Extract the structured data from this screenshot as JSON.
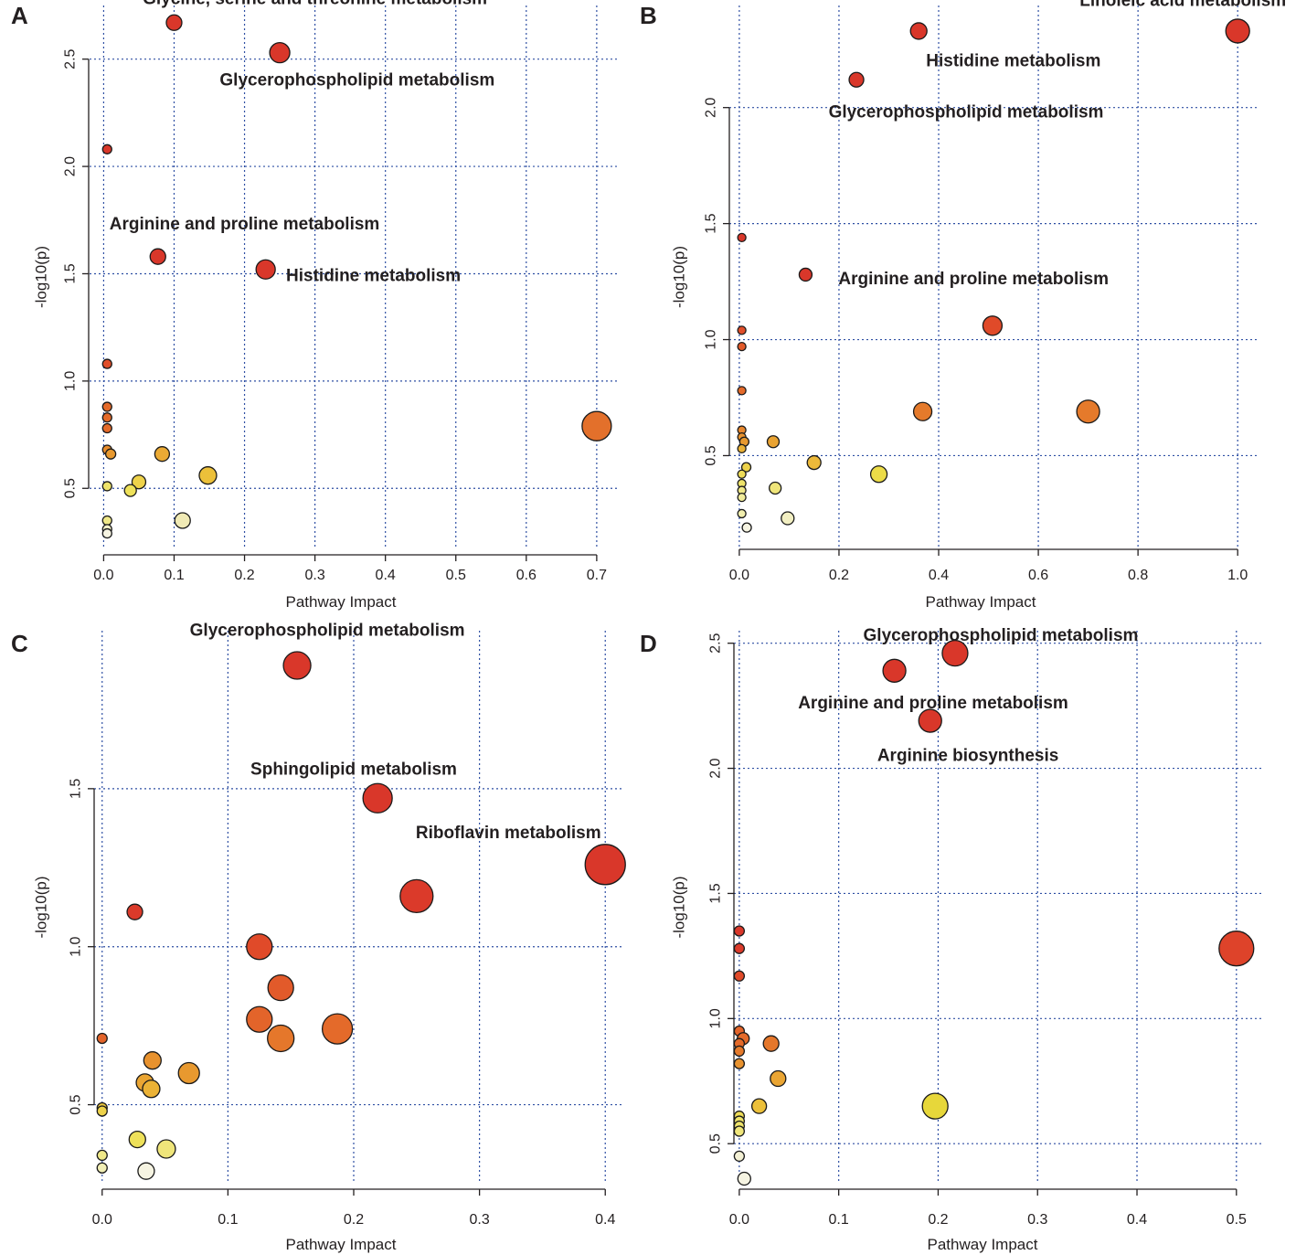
{
  "figure": {
    "x_axis_title": "Pathway Impact",
    "y_axis_title": "-log10(p)"
  },
  "chart_data": [
    {
      "panel": "A",
      "type": "scatter",
      "xlabel": "Pathway Impact",
      "ylabel": "-log10(p)",
      "xlim": [
        -0.02,
        0.73
      ],
      "ylim": [
        0.22,
        2.75
      ],
      "xticks": [
        "0.0",
        "0.1",
        "0.2",
        "0.3",
        "0.4",
        "0.5",
        "0.6",
        "0.7"
      ],
      "xtick_values": [
        0,
        0.1,
        0.2,
        0.3,
        0.4,
        0.5,
        0.6,
        0.7
      ],
      "yticks": [
        "0.5",
        "1.0",
        "1.5",
        "2.0",
        "2.5"
      ],
      "ytick_values": [
        0.5,
        1.0,
        1.5,
        2.0,
        2.5
      ],
      "xgrid": [
        0,
        0.1,
        0.2,
        0.3,
        0.4,
        0.5,
        0.6,
        0.7
      ],
      "ygrid": [
        0.5,
        1.0,
        1.5,
        2.0,
        2.5
      ],
      "points": [
        {
          "x": 0.1,
          "y": 2.67,
          "r": 8.5,
          "color": "#d9372a"
        },
        {
          "x": 0.25,
          "y": 2.53,
          "r": 11,
          "color": "#d9372a"
        },
        {
          "x": 0.005,
          "y": 2.08,
          "r": 5,
          "color": "#d9372a"
        },
        {
          "x": 0.077,
          "y": 1.58,
          "r": 8.5,
          "color": "#d9372a"
        },
        {
          "x": 0.23,
          "y": 1.52,
          "r": 10.5,
          "color": "#d9372a"
        },
        {
          "x": 0.005,
          "y": 1.08,
          "r": 5,
          "color": "#e04e29"
        },
        {
          "x": 0.005,
          "y": 0.88,
          "r": 5,
          "color": "#e46a2a"
        },
        {
          "x": 0.005,
          "y": 0.83,
          "r": 5,
          "color": "#e46a2a"
        },
        {
          "x": 0.005,
          "y": 0.78,
          "r": 5,
          "color": "#e46a2a"
        },
        {
          "x": 0.7,
          "y": 0.79,
          "r": 16,
          "color": "#e3702b"
        },
        {
          "x": 0.005,
          "y": 0.68,
          "r": 5,
          "color": "#e78c2d"
        },
        {
          "x": 0.01,
          "y": 0.66,
          "r": 5.5,
          "color": "#e8992f"
        },
        {
          "x": 0.083,
          "y": 0.66,
          "r": 8,
          "color": "#ebaa34"
        },
        {
          "x": 0.148,
          "y": 0.56,
          "r": 9.5,
          "color": "#ecc03a"
        },
        {
          "x": 0.05,
          "y": 0.53,
          "r": 7.5,
          "color": "#eed24a"
        },
        {
          "x": 0.005,
          "y": 0.51,
          "r": 5,
          "color": "#eee36a"
        },
        {
          "x": 0.038,
          "y": 0.49,
          "r": 6.5,
          "color": "#eee15a"
        },
        {
          "x": 0.005,
          "y": 0.35,
          "r": 5,
          "color": "#efe888"
        },
        {
          "x": 0.112,
          "y": 0.35,
          "r": 8.5,
          "color": "#f0eab5"
        },
        {
          "x": 0.005,
          "y": 0.31,
          "r": 5,
          "color": "#f3f0c8"
        },
        {
          "x": 0.005,
          "y": 0.29,
          "r": 5,
          "color": "#f6f4e2"
        }
      ],
      "annotations": [
        {
          "text": "Glycine, serine and threonine metabolism",
          "x": 0.3,
          "y": 2.78,
          "anchor": "middle"
        },
        {
          "text": "Glycerophospholipid metabolism",
          "x": 0.36,
          "y": 2.4,
          "anchor": "middle"
        },
        {
          "text": "Arginine and proline metabolism",
          "x": 0.2,
          "y": 1.73,
          "anchor": "middle"
        },
        {
          "text": "Histidine metabolism",
          "x": 0.383,
          "y": 1.49,
          "anchor": "middle"
        }
      ]
    },
    {
      "panel": "B",
      "type": "scatter",
      "xlabel": "Pathway Impact",
      "ylabel": "-log10(p)",
      "xlim": [
        -0.02,
        1.04
      ],
      "ylim": [
        0.1,
        2.44
      ],
      "xticks": [
        "0.0",
        "0.2",
        "0.4",
        "0.6",
        "0.8",
        "1.0"
      ],
      "xtick_values": [
        0,
        0.2,
        0.4,
        0.6,
        0.8,
        1.0
      ],
      "yticks": [
        "0.5",
        "1.0",
        "1.5",
        "2.0"
      ],
      "ytick_values": [
        0.5,
        1.0,
        1.5,
        2.0
      ],
      "xgrid": [
        0,
        0.2,
        0.4,
        0.6,
        0.8,
        1.0
      ],
      "ygrid": [
        0.5,
        1.0,
        1.5,
        2.0
      ],
      "points": [
        {
          "x": 1.0,
          "y": 2.33,
          "r": 13,
          "color": "#d9372a"
        },
        {
          "x": 0.36,
          "y": 2.33,
          "r": 9,
          "color": "#d9372a"
        },
        {
          "x": 0.235,
          "y": 2.12,
          "r": 8,
          "color": "#d9372a"
        },
        {
          "x": 0.005,
          "y": 1.44,
          "r": 4.5,
          "color": "#d9372a"
        },
        {
          "x": 0.133,
          "y": 1.28,
          "r": 7,
          "color": "#d9372a"
        },
        {
          "x": 0.508,
          "y": 1.06,
          "r": 10.5,
          "color": "#e04a29"
        },
        {
          "x": 0.005,
          "y": 1.04,
          "r": 4.5,
          "color": "#e04e29"
        },
        {
          "x": 0.005,
          "y": 0.97,
          "r": 4.5,
          "color": "#e25a2a"
        },
        {
          "x": 0.005,
          "y": 0.78,
          "r": 4.5,
          "color": "#e46a2a"
        },
        {
          "x": 0.368,
          "y": 0.69,
          "r": 10,
          "color": "#e57a2b"
        },
        {
          "x": 0.7,
          "y": 0.69,
          "r": 12.5,
          "color": "#e57a2b"
        },
        {
          "x": 0.005,
          "y": 0.61,
          "r": 4.5,
          "color": "#e7872d"
        },
        {
          "x": 0.005,
          "y": 0.58,
          "r": 4.5,
          "color": "#e8922e"
        },
        {
          "x": 0.01,
          "y": 0.56,
          "r": 5,
          "color": "#e8992f"
        },
        {
          "x": 0.068,
          "y": 0.56,
          "r": 6.5,
          "color": "#e9a332"
        },
        {
          "x": 0.005,
          "y": 0.53,
          "r": 4.5,
          "color": "#eab136"
        },
        {
          "x": 0.15,
          "y": 0.47,
          "r": 7.5,
          "color": "#ecb93a"
        },
        {
          "x": 0.014,
          "y": 0.45,
          "r": 5,
          "color": "#edd24a"
        },
        {
          "x": 0.005,
          "y": 0.42,
          "r": 4.5,
          "color": "#eedc58"
        },
        {
          "x": 0.28,
          "y": 0.42,
          "r": 9,
          "color": "#ecdc48"
        },
        {
          "x": 0.005,
          "y": 0.38,
          "r": 4.5,
          "color": "#eee36a"
        },
        {
          "x": 0.072,
          "y": 0.36,
          "r": 6.5,
          "color": "#efe57a"
        },
        {
          "x": 0.005,
          "y": 0.35,
          "r": 4.5,
          "color": "#efe888"
        },
        {
          "x": 0.005,
          "y": 0.32,
          "r": 4.5,
          "color": "#f0eb9a"
        },
        {
          "x": 0.005,
          "y": 0.25,
          "r": 4.5,
          "color": "#f1eeae"
        },
        {
          "x": 0.097,
          "y": 0.23,
          "r": 7,
          "color": "#f2efc2"
        },
        {
          "x": 0.015,
          "y": 0.19,
          "r": 5,
          "color": "#f6f4e2"
        }
      ],
      "annotations": [
        {
          "text": "Linoleic acid metabolism",
          "x": 0.89,
          "y": 2.46,
          "anchor": "middle"
        },
        {
          "text": "Histidine metabolism",
          "x": 0.55,
          "y": 2.2,
          "anchor": "middle"
        },
        {
          "text": "Glycerophospholipid metabolism",
          "x": 0.455,
          "y": 1.98,
          "anchor": "middle"
        },
        {
          "text": "Arginine and proline metabolism",
          "x": 0.47,
          "y": 1.26,
          "anchor": "middle"
        }
      ]
    },
    {
      "panel": "C",
      "type": "scatter",
      "xlabel": "Pathway Impact",
      "ylabel": "-log10(p)",
      "xlim": [
        -0.01,
        0.41
      ],
      "ylim": [
        0.25,
        2.0
      ],
      "xticks": [
        "0.0",
        "0.1",
        "0.2",
        "0.3",
        "0.4"
      ],
      "xtick_values": [
        0,
        0.1,
        0.2,
        0.3,
        0.4
      ],
      "yticks": [
        "0.5",
        "1.0",
        "1.5"
      ],
      "ytick_values": [
        0.5,
        1.0,
        1.5
      ],
      "xgrid": [
        0,
        0.1,
        0.2,
        0.3,
        0.4
      ],
      "ygrid": [
        0.5,
        1.0,
        1.5
      ],
      "points": [
        {
          "x": 0.155,
          "y": 1.89,
          "r": 15,
          "color": "#d9372a"
        },
        {
          "x": 0.219,
          "y": 1.47,
          "r": 16,
          "color": "#d9372a"
        },
        {
          "x": 0.4,
          "y": 1.26,
          "r": 22,
          "color": "#d9372a"
        },
        {
          "x": 0.25,
          "y": 1.16,
          "r": 18,
          "color": "#db3a2a"
        },
        {
          "x": 0.026,
          "y": 1.11,
          "r": 8.5,
          "color": "#db3a2a"
        },
        {
          "x": 0.125,
          "y": 1.0,
          "r": 14,
          "color": "#e04a29"
        },
        {
          "x": 0.142,
          "y": 0.87,
          "r": 14,
          "color": "#e25a2a"
        },
        {
          "x": 0.125,
          "y": 0.77,
          "r": 14,
          "color": "#e3642a"
        },
        {
          "x": 0.187,
          "y": 0.74,
          "r": 16.5,
          "color": "#e46a2a"
        },
        {
          "x": 0.142,
          "y": 0.71,
          "r": 14.5,
          "color": "#e5772b"
        },
        {
          "x": 0.0,
          "y": 0.71,
          "r": 5.5,
          "color": "#e3642a"
        },
        {
          "x": 0.04,
          "y": 0.64,
          "r": 9.5,
          "color": "#e8922e"
        },
        {
          "x": 0.069,
          "y": 0.6,
          "r": 11.5,
          "color": "#e8992f"
        },
        {
          "x": 0.034,
          "y": 0.57,
          "r": 9.5,
          "color": "#eaa533"
        },
        {
          "x": 0.039,
          "y": 0.55,
          "r": 9.5,
          "color": "#ebb236"
        },
        {
          "x": 0.0,
          "y": 0.49,
          "r": 5.5,
          "color": "#ecc73e"
        },
        {
          "x": 0.0,
          "y": 0.48,
          "r": 5.5,
          "color": "#edd24a"
        },
        {
          "x": 0.028,
          "y": 0.39,
          "r": 9,
          "color": "#eee15a"
        },
        {
          "x": 0.051,
          "y": 0.36,
          "r": 10,
          "color": "#efe57a"
        },
        {
          "x": 0.0,
          "y": 0.34,
          "r": 5.5,
          "color": "#efe888"
        },
        {
          "x": 0.0,
          "y": 0.3,
          "r": 5.5,
          "color": "#f1eeb5"
        },
        {
          "x": 0.035,
          "y": 0.29,
          "r": 9,
          "color": "#f6f4e2"
        }
      ],
      "annotations": [
        {
          "text": "Glycerophospholipid metabolism",
          "x": 0.179,
          "y": 2.0,
          "anchor": "middle"
        },
        {
          "text": "Sphingolipid metabolism",
          "x": 0.2,
          "y": 1.56,
          "anchor": "middle"
        },
        {
          "text": "Riboflavin metabolism",
          "x": 0.323,
          "y": 1.36,
          "anchor": "middle"
        }
      ]
    },
    {
      "panel": "D",
      "type": "scatter",
      "xlabel": "Pathway Impact",
      "ylabel": "-log10(p)",
      "xlim": [
        -0.01,
        0.525
      ],
      "ylim": [
        0.34,
        2.55
      ],
      "xticks": [
        "0.0",
        "0.1",
        "0.2",
        "0.3",
        "0.4",
        "0.5"
      ],
      "xtick_values": [
        0,
        0.1,
        0.2,
        0.3,
        0.4,
        0.5
      ],
      "yticks": [
        "0.5",
        "1.0",
        "1.5",
        "2.0",
        "2.5"
      ],
      "ytick_values": [
        0.5,
        1.0,
        1.5,
        2.0,
        2.5
      ],
      "xgrid": [
        0,
        0.1,
        0.2,
        0.3,
        0.4,
        0.5
      ],
      "ygrid": [
        0.5,
        1.0,
        1.5,
        2.0,
        2.5
      ],
      "points": [
        {
          "x": 0.217,
          "y": 2.46,
          "r": 14,
          "color": "#d9372a"
        },
        {
          "x": 0.156,
          "y": 2.39,
          "r": 12.5,
          "color": "#d9372a"
        },
        {
          "x": 0.192,
          "y": 2.19,
          "r": 12.5,
          "color": "#d9372a"
        },
        {
          "x": 0.0,
          "y": 1.35,
          "r": 5.5,
          "color": "#d9372a"
        },
        {
          "x": 0.0,
          "y": 1.28,
          "r": 5.5,
          "color": "#db3a2a"
        },
        {
          "x": 0.5,
          "y": 1.28,
          "r": 19,
          "color": "#de432a"
        },
        {
          "x": 0.0,
          "y": 1.17,
          "r": 5.5,
          "color": "#e04a29"
        },
        {
          "x": 0.0,
          "y": 0.95,
          "r": 5.5,
          "color": "#e3642a"
        },
        {
          "x": 0.004,
          "y": 0.92,
          "r": 6.5,
          "color": "#e46a2a"
        },
        {
          "x": 0.0,
          "y": 0.9,
          "r": 5.5,
          "color": "#e46a2a"
        },
        {
          "x": 0.032,
          "y": 0.9,
          "r": 8.5,
          "color": "#e5772b"
        },
        {
          "x": 0.0,
          "y": 0.87,
          "r": 5.5,
          "color": "#e57a2b"
        },
        {
          "x": 0.0,
          "y": 0.82,
          "r": 5.5,
          "color": "#e8922e"
        },
        {
          "x": 0.039,
          "y": 0.76,
          "r": 8.5,
          "color": "#eaa533"
        },
        {
          "x": 0.02,
          "y": 0.65,
          "r": 8,
          "color": "#ecc03a"
        },
        {
          "x": 0.197,
          "y": 0.65,
          "r": 14,
          "color": "#e7d73a"
        },
        {
          "x": 0.0,
          "y": 0.61,
          "r": 5.5,
          "color": "#eedc58"
        },
        {
          "x": 0.0,
          "y": 0.59,
          "r": 5.5,
          "color": "#eee36a"
        },
        {
          "x": 0.0,
          "y": 0.57,
          "r": 5.5,
          "color": "#eee36a"
        },
        {
          "x": 0.0,
          "y": 0.55,
          "r": 5.5,
          "color": "#efe57a"
        },
        {
          "x": 0.0,
          "y": 0.45,
          "r": 5.5,
          "color": "#f3f0d4"
        },
        {
          "x": 0.005,
          "y": 0.36,
          "r": 7,
          "color": "#f6f4e2"
        }
      ],
      "annotations": [
        {
          "text": "Glycerophospholipid metabolism",
          "x": 0.263,
          "y": 2.53,
          "anchor": "middle"
        },
        {
          "text": "Arginine and proline metabolism",
          "x": 0.195,
          "y": 2.26,
          "anchor": "middle"
        },
        {
          "text": "Arginine biosynthesis",
          "x": 0.23,
          "y": 2.05,
          "anchor": "middle"
        }
      ]
    }
  ]
}
